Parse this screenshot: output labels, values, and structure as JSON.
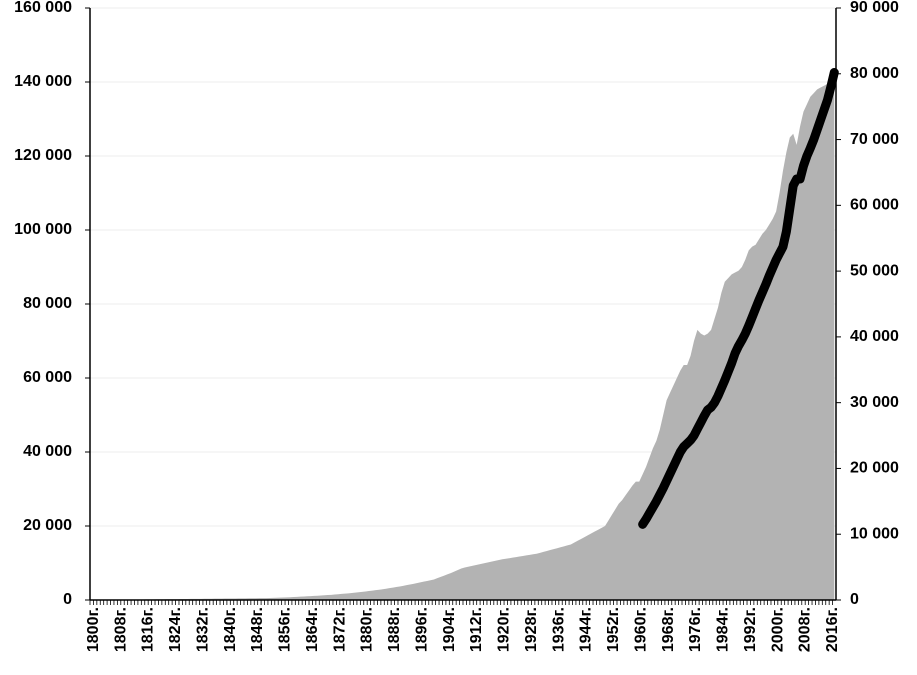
{
  "chart_data": {
    "type": "area",
    "categories": [
      "1800г.",
      null,
      null,
      null,
      null,
      null,
      null,
      null,
      "1808г.",
      null,
      null,
      null,
      null,
      null,
      null,
      null,
      "1816г.",
      null,
      null,
      null,
      null,
      null,
      null,
      null,
      "1824г.",
      null,
      null,
      null,
      null,
      null,
      null,
      null,
      "1832г.",
      null,
      null,
      null,
      null,
      null,
      null,
      null,
      "1840г.",
      null,
      null,
      null,
      null,
      null,
      null,
      null,
      "1848г.",
      null,
      null,
      null,
      null,
      null,
      null,
      null,
      "1856г.",
      null,
      null,
      null,
      null,
      null,
      null,
      null,
      "1864г.",
      null,
      null,
      null,
      null,
      null,
      null,
      null,
      "1872г.",
      null,
      null,
      null,
      null,
      null,
      null,
      null,
      "1880г.",
      null,
      null,
      null,
      null,
      null,
      null,
      null,
      "1888г.",
      null,
      null,
      null,
      null,
      null,
      null,
      null,
      "1896г.",
      null,
      null,
      null,
      null,
      null,
      null,
      null,
      "1904г.",
      null,
      null,
      null,
      null,
      null,
      null,
      null,
      "1912г.",
      null,
      null,
      null,
      null,
      null,
      null,
      null,
      "1920г.",
      null,
      null,
      null,
      null,
      null,
      null,
      null,
      "1928г.",
      null,
      null,
      null,
      null,
      null,
      null,
      null,
      "1936г.",
      null,
      null,
      null,
      null,
      null,
      null,
      null,
      "1944г.",
      null,
      null,
      null,
      null,
      null,
      null,
      null,
      "1952г.",
      null,
      null,
      null,
      null,
      null,
      null,
      null,
      "1960г.",
      null,
      null,
      null,
      null,
      null,
      null,
      null,
      "1968г.",
      null,
      null,
      null,
      null,
      null,
      null,
      null,
      "1976г.",
      null,
      null,
      null,
      null,
      null,
      null,
      null,
      "1984г.",
      null,
      null,
      null,
      null,
      null,
      null,
      null,
      "1992г.",
      null,
      null,
      null,
      null,
      null,
      null,
      null,
      "2000г.",
      null,
      null,
      null,
      null,
      null,
      null,
      null,
      "2008г.",
      null,
      null,
      null,
      null,
      null,
      null,
      null,
      "2016г.",
      null
    ],
    "series": [
      {
        "type": "area",
        "color": "#b3b3b3",
        "values": [
          0,
          10,
          20,
          30,
          40,
          50,
          60,
          70,
          80,
          90,
          100,
          110,
          120,
          130,
          140,
          150,
          160,
          170,
          180,
          190,
          200,
          210,
          220,
          230,
          240,
          250,
          260,
          270,
          280,
          290,
          300,
          310,
          320,
          330,
          340,
          350,
          360,
          370,
          380,
          390,
          400,
          410,
          420,
          430,
          440,
          450,
          460,
          470,
          480,
          490,
          500,
          520,
          550,
          580,
          610,
          640,
          680,
          720,
          760,
          800,
          850,
          900,
          950,
          1000,
          1050,
          1100,
          1160,
          1220,
          1280,
          1340,
          1400,
          1480,
          1560,
          1640,
          1720,
          1800,
          1900,
          2000,
          2100,
          2200,
          2300,
          2420,
          2540,
          2660,
          2780,
          2900,
          3050,
          3200,
          3350,
          3500,
          3650,
          3830,
          4010,
          4190,
          4370,
          4550,
          4750,
          4950,
          5150,
          5350,
          5550,
          5900,
          6250,
          6600,
          6950,
          7300,
          7700,
          8100,
          8500,
          8800,
          9000,
          9200,
          9400,
          9600,
          9800,
          10000,
          10200,
          10400,
          10600,
          10800,
          11000,
          11150,
          11300,
          11450,
          11600,
          11750,
          11900,
          12050,
          12200,
          12350,
          12500,
          12750,
          13000,
          13250,
          13500,
          13750,
          14000,
          14250,
          14500,
          14750,
          15000,
          15500,
          16000,
          16500,
          17000,
          17500,
          18000,
          18500,
          19000,
          19500,
          20000,
          21500,
          23000,
          24500,
          26000,
          27000,
          28300,
          29600,
          30900,
          32000,
          32000,
          34000,
          36000,
          38500,
          41000,
          43000,
          46000,
          50000,
          54000,
          56000,
          58000,
          60000,
          62000,
          63500,
          63500,
          66000,
          70000,
          73000,
          72000,
          71500,
          72000,
          73000,
          76000,
          79000,
          83000,
          86000,
          87000,
          88000,
          88500,
          89000,
          90000,
          92000,
          94500,
          95500,
          96000,
          97500,
          99000,
          100000,
          101500,
          103000,
          105000,
          110000,
          116000,
          121000,
          125000,
          126000,
          123000,
          128000,
          132000,
          134000,
          136000,
          137000,
          138000,
          138500,
          139000,
          139500,
          140000,
          141000
        ]
      },
      {
        "type": "line",
        "axis": "y2",
        "color": "#000000",
        "values": [
          null,
          null,
          null,
          null,
          null,
          null,
          null,
          null,
          null,
          null,
          null,
          null,
          null,
          null,
          null,
          null,
          null,
          null,
          null,
          null,
          null,
          null,
          null,
          null,
          null,
          null,
          null,
          null,
          null,
          null,
          null,
          null,
          null,
          null,
          null,
          null,
          null,
          null,
          null,
          null,
          null,
          null,
          null,
          null,
          null,
          null,
          null,
          null,
          null,
          null,
          null,
          null,
          null,
          null,
          null,
          null,
          null,
          null,
          null,
          null,
          null,
          null,
          null,
          null,
          null,
          null,
          null,
          null,
          null,
          null,
          null,
          null,
          null,
          null,
          null,
          null,
          null,
          null,
          null,
          null,
          null,
          null,
          null,
          null,
          null,
          null,
          null,
          null,
          null,
          null,
          null,
          null,
          null,
          null,
          null,
          null,
          null,
          null,
          null,
          null,
          null,
          null,
          null,
          null,
          null,
          null,
          null,
          null,
          null,
          null,
          null,
          null,
          null,
          null,
          null,
          null,
          null,
          null,
          null,
          null,
          null,
          null,
          null,
          null,
          null,
          null,
          null,
          null,
          null,
          null,
          null,
          null,
          null,
          null,
          null,
          null,
          null,
          null,
          null,
          null,
          null,
          null,
          null,
          null,
          null,
          null,
          null,
          null,
          null,
          null,
          null,
          null,
          null,
          null,
          null,
          null,
          null,
          null,
          null,
          null,
          null,
          11500,
          12300,
          13200,
          14100,
          15000,
          16000,
          17000,
          18100,
          19200,
          20300,
          21400,
          22500,
          23300,
          23800,
          24300,
          25000,
          26000,
          27000,
          28000,
          28900,
          29300,
          30000,
          31000,
          32200,
          33400,
          34700,
          36000,
          37500,
          38600,
          39500,
          40500,
          41700,
          43000,
          44300,
          45600,
          46800,
          48000,
          49300,
          50500,
          51700,
          52700,
          53700,
          56000,
          59500,
          63000,
          64000,
          64000,
          66000,
          67500,
          68700,
          70000,
          71500,
          73000,
          74500,
          76000,
          78000,
          80200
        ]
      }
    ],
    "ylim": [
      0,
      160000
    ],
    "yticks": [
      0,
      {
        "value": 20000,
        "label": "20 000"
      },
      {
        "value": 40000,
        "label": "40 000"
      },
      {
        "value": 60000,
        "label": "60 000"
      },
      {
        "value": 80000,
        "label": "80 000"
      },
      {
        "value": 100000,
        "label": "100 000"
      },
      {
        "value": 120000,
        "label": "120 000"
      },
      {
        "value": 140000,
        "label": "140 000"
      },
      {
        "value": 160000,
        "label": "160 000"
      }
    ],
    "y2lim": [
      0,
      90000
    ],
    "y2ticks": [
      0,
      {
        "value": 10000,
        "label": "10 000"
      },
      {
        "value": 20000,
        "label": "20 000"
      },
      {
        "value": 30000,
        "label": "30 000"
      },
      {
        "value": 40000,
        "label": "40 000"
      },
      {
        "value": 50000,
        "label": "50 000"
      },
      {
        "value": 60000,
        "label": "60 000"
      },
      {
        "value": 70000,
        "label": "70 000"
      },
      {
        "value": 80000,
        "label": "80 000"
      },
      {
        "value": 90000,
        "label": "90 000"
      }
    ],
    "grid": true
  }
}
